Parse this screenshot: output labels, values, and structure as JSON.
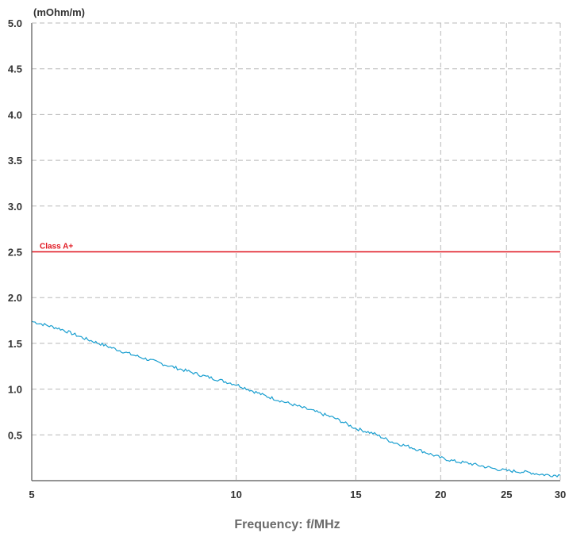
{
  "chart_data": {
    "type": "line",
    "title": "",
    "ylabel": "(mOhm/m)",
    "xlabel": "Frequency: f/MHz",
    "x_scale": "log",
    "xlim": [
      5,
      30
    ],
    "ylim": [
      0,
      5.0
    ],
    "x_ticks": [
      5,
      10,
      15,
      20,
      25,
      30
    ],
    "x_tick_labels": [
      "5",
      "10",
      "15",
      "20",
      "25",
      "30"
    ],
    "y_ticks": [
      0.5,
      1.0,
      1.5,
      2.0,
      2.5,
      3.0,
      3.5,
      4.0,
      4.5,
      5.0
    ],
    "y_tick_labels": [
      "0.5",
      "1.0",
      "1.5",
      "2.0",
      "2.5",
      "3.0",
      "3.5",
      "4.0",
      "4.5",
      "5.0"
    ],
    "grid": true,
    "limit_line": {
      "label": "Class A+",
      "value": 2.5,
      "color": "#e0141e"
    },
    "series": [
      {
        "color": "#1a9fd0",
        "x": [
          5,
          5.5,
          6,
          7,
          8,
          9,
          10,
          11,
          12,
          13,
          14,
          15,
          16,
          17,
          18,
          19,
          20,
          21,
          22,
          23,
          24,
          25,
          26,
          27,
          28,
          29,
          30
        ],
        "y": [
          1.74,
          1.66,
          1.55,
          1.38,
          1.25,
          1.14,
          1.05,
          0.93,
          0.84,
          0.76,
          0.68,
          0.57,
          0.51,
          0.42,
          0.37,
          0.31,
          0.25,
          0.21,
          0.19,
          0.16,
          0.13,
          0.11,
          0.1,
          0.09,
          0.07,
          0.06,
          0.06
        ]
      }
    ]
  }
}
